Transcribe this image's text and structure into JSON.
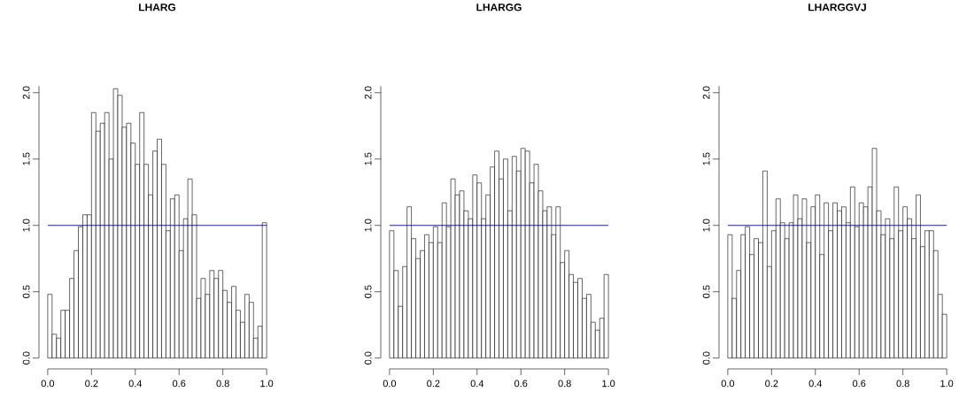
{
  "chart_data": [
    {
      "type": "histogram",
      "title": "LHARG",
      "bins": [
        0,
        0.02,
        0.04,
        0.06,
        0.08,
        0.1,
        0.12,
        0.14,
        0.16,
        0.18,
        0.2,
        0.22,
        0.24,
        0.26,
        0.28,
        0.3,
        0.32,
        0.34,
        0.36,
        0.38,
        0.4,
        0.42,
        0.44,
        0.46,
        0.48,
        0.5,
        0.52,
        0.54,
        0.56,
        0.58,
        0.6,
        0.62,
        0.64,
        0.66,
        0.68,
        0.7,
        0.72,
        0.74,
        0.76,
        0.78,
        0.8,
        0.82,
        0.84,
        0.86,
        0.88,
        0.9,
        0.92,
        0.94,
        0.96,
        0.98,
        1.0
      ],
      "values": [
        0.48,
        0.18,
        0.15,
        0.36,
        0.36,
        0.6,
        0.81,
        0.99,
        1.08,
        1.08,
        1.85,
        1.71,
        1.77,
        1.85,
        1.5,
        2.03,
        1.98,
        1.74,
        1.77,
        1.62,
        1.46,
        1.85,
        1.46,
        1.23,
        1.56,
        1.65,
        1.46,
        0.96,
        1.2,
        1.23,
        0.81,
        1.05,
        1.35,
        1.08,
        0.45,
        0.6,
        0.48,
        0.66,
        0.6,
        0.66,
        0.51,
        0.42,
        0.54,
        0.36,
        0.27,
        0.48,
        0.42,
        0.15,
        0.24,
        1.02
      ],
      "color": "#ffffff",
      "xlim": [
        0,
        1
      ],
      "ylim": [
        0,
        2.05
      ],
      "xticks": [
        {
          "value": 0,
          "label": "0.0"
        },
        {
          "value": 0.2,
          "label": "0.2"
        },
        {
          "value": 0.4,
          "label": "0.4"
        },
        {
          "value": 0.6,
          "label": "0.6"
        },
        {
          "value": 0.8,
          "label": "0.8"
        },
        {
          "value": 1,
          "label": "1.0"
        }
      ],
      "yticks": [
        {
          "value": 0,
          "label": "0.0"
        },
        {
          "value": 0.5,
          "label": "0.5"
        },
        {
          "value": 1,
          "label": "1.0"
        },
        {
          "value": 1.5,
          "label": "1.5"
        },
        {
          "value": 2,
          "label": "2.0"
        }
      ],
      "ref_lines": [
        {
          "axis": "y",
          "value": 1,
          "color": "#0000cd"
        }
      ]
    },
    {
      "type": "histogram",
      "title": "LHARGG",
      "bins": [
        0,
        0.02,
        0.04,
        0.06,
        0.08,
        0.1,
        0.12,
        0.14,
        0.16,
        0.18,
        0.2,
        0.22,
        0.24,
        0.26,
        0.28,
        0.3,
        0.32,
        0.34,
        0.36,
        0.38,
        0.4,
        0.42,
        0.44,
        0.46,
        0.48,
        0.5,
        0.52,
        0.54,
        0.56,
        0.58,
        0.6,
        0.62,
        0.64,
        0.66,
        0.68,
        0.7,
        0.72,
        0.74,
        0.76,
        0.78,
        0.8,
        0.82,
        0.84,
        0.86,
        0.88,
        0.9,
        0.92,
        0.94,
        0.96,
        0.98,
        1.0
      ],
      "values": [
        0.96,
        0.66,
        0.39,
        0.69,
        1.14,
        0.9,
        0.75,
        0.81,
        0.93,
        0.87,
        0.99,
        0.87,
        1.17,
        0.99,
        1.35,
        1.23,
        1.26,
        1.11,
        1.05,
        1.38,
        1.32,
        1.05,
        1.23,
        1.44,
        1.56,
        1.35,
        1.5,
        1.11,
        1.52,
        1.41,
        1.58,
        1.56,
        1.32,
        1.46,
        1.26,
        1.11,
        1.14,
        0.93,
        1.14,
        0.72,
        0.81,
        0.63,
        0.57,
        0.6,
        0.45,
        0.48,
        0.27,
        0.21,
        0.3,
        0.63
      ],
      "color": "#ffffff",
      "xlim": [
        0,
        1
      ],
      "ylim": [
        0,
        2.05
      ],
      "xticks": [
        {
          "value": 0,
          "label": "0.0"
        },
        {
          "value": 0.2,
          "label": "0.2"
        },
        {
          "value": 0.4,
          "label": "0.4"
        },
        {
          "value": 0.6,
          "label": "0.6"
        },
        {
          "value": 0.8,
          "label": "0.8"
        },
        {
          "value": 1,
          "label": "1.0"
        }
      ],
      "yticks": [
        {
          "value": 0,
          "label": "0.0"
        },
        {
          "value": 0.5,
          "label": "0.5"
        },
        {
          "value": 1,
          "label": "1.0"
        },
        {
          "value": 1.5,
          "label": "1.5"
        },
        {
          "value": 2,
          "label": "2.0"
        }
      ],
      "ref_lines": [
        {
          "axis": "y",
          "value": 1,
          "color": "#0000cd"
        }
      ]
    },
    {
      "type": "histogram",
      "title": "LHARGGVJ",
      "bins": [
        0,
        0.02,
        0.04,
        0.06,
        0.08,
        0.1,
        0.12,
        0.14,
        0.16,
        0.18,
        0.2,
        0.22,
        0.24,
        0.26,
        0.28,
        0.3,
        0.32,
        0.34,
        0.36,
        0.38,
        0.4,
        0.42,
        0.44,
        0.46,
        0.48,
        0.5,
        0.52,
        0.54,
        0.56,
        0.58,
        0.6,
        0.62,
        0.64,
        0.66,
        0.68,
        0.7,
        0.72,
        0.74,
        0.76,
        0.78,
        0.8,
        0.82,
        0.84,
        0.86,
        0.88,
        0.9,
        0.92,
        0.94,
        0.96,
        0.98,
        1.0
      ],
      "values": [
        0.93,
        0.45,
        0.66,
        0.93,
        0.99,
        0.78,
        0.9,
        0.87,
        1.41,
        0.69,
        0.96,
        1.2,
        1.02,
        0.9,
        1.02,
        1.23,
        1.05,
        1.2,
        0.87,
        1.14,
        1.23,
        0.78,
        1.17,
        0.96,
        1.17,
        1.11,
        1.14,
        1.02,
        1.29,
        0.99,
        1.17,
        1.14,
        1.29,
        1.58,
        1.11,
        0.93,
        1.05,
        0.9,
        1.29,
        0.96,
        1.14,
        1.05,
        0.9,
        1.23,
        0.84,
        0.96,
        0.96,
        0.81,
        0.48,
        0.33
      ],
      "color": "#ffffff",
      "xlim": [
        0,
        1
      ],
      "ylim": [
        0,
        2.05
      ],
      "xticks": [
        {
          "value": 0,
          "label": "0.0"
        },
        {
          "value": 0.2,
          "label": "0.2"
        },
        {
          "value": 0.4,
          "label": "0.4"
        },
        {
          "value": 0.6,
          "label": "0.6"
        },
        {
          "value": 0.8,
          "label": "0.8"
        },
        {
          "value": 1,
          "label": "1.0"
        }
      ],
      "yticks": [
        {
          "value": 0,
          "label": "0.0"
        },
        {
          "value": 0.5,
          "label": "0.5"
        },
        {
          "value": 1,
          "label": "1.0"
        },
        {
          "value": 1.5,
          "label": "1.5"
        },
        {
          "value": 2,
          "label": "2.0"
        }
      ],
      "ref_lines": [
        {
          "axis": "y",
          "value": 1,
          "color": "#0000cd"
        }
      ]
    }
  ]
}
